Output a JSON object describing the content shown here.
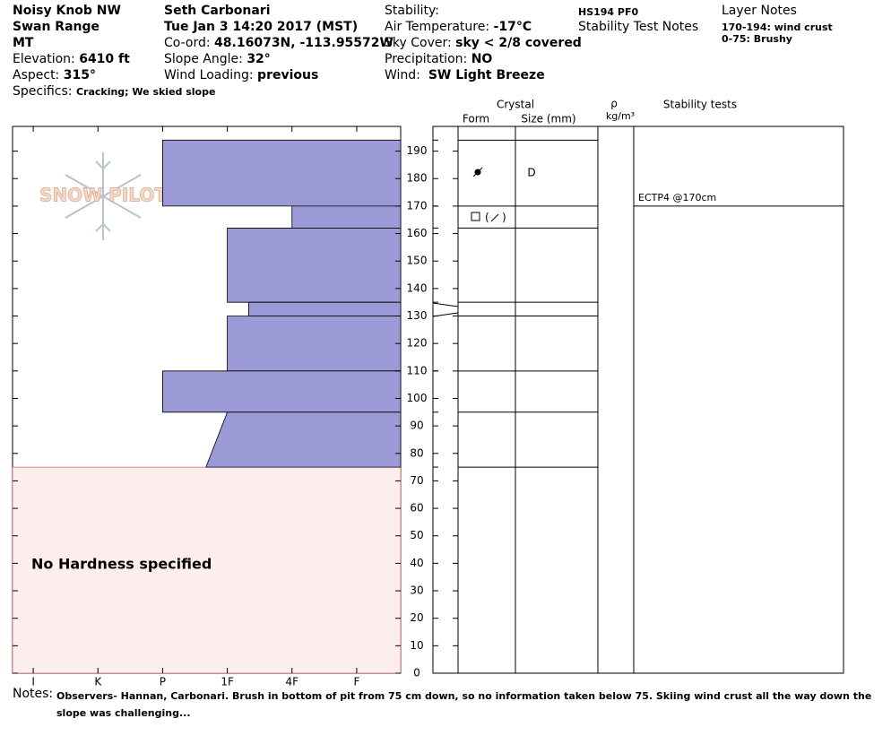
{
  "header": {
    "location": "Noisy Knob NW",
    "range": "Swan Range",
    "state": "MT",
    "elevation_label": "Elevation:",
    "elevation": "6410 ft",
    "aspect_label": "Aspect:",
    "aspect": "315°",
    "specifics_label": "Specifics:",
    "specifics": "Cracking; We skied slope",
    "observer": "Seth Carbonari",
    "datetime": "Tue Jan 3 14:20 2017 (MST)",
    "coord_label": "Co-ord:",
    "coord": "48.16073N, -113.95572W",
    "slope_label": "Slope Angle:",
    "slope": "32°",
    "wind_loading_label": "Wind Loading:",
    "wind_loading": "previous",
    "stability_label": "Stability:",
    "air_temp_label": "Air Temperature:",
    "air_temp": "-17°C",
    "sky_label": "Sky Cover:",
    "sky": "sky < 2/8 covered",
    "precip_label": "Precipitation:",
    "precip": "NO",
    "wind_label": "Wind:",
    "wind": "SW Light Breeze",
    "hs": "HS194 PF0",
    "stability_notes": "Stability Test Notes",
    "layer_notes_title": "Layer Notes",
    "layer_notes": [
      "170-194: wind crust",
      "0-75: Brushy"
    ]
  },
  "chart_data": {
    "type": "snow-profile",
    "watermark": "SNOW PILOT",
    "ylim": [
      0,
      199
    ],
    "yticks": [
      0,
      10,
      20,
      30,
      40,
      50,
      60,
      70,
      80,
      90,
      100,
      110,
      120,
      130,
      140,
      150,
      160,
      170,
      180,
      190
    ],
    "xlim": [
      0.68,
      6.68
    ],
    "xticks": [
      {
        "value": 1,
        "label": "I"
      },
      {
        "value": 2,
        "label": "K"
      },
      {
        "value": 3,
        "label": "P"
      },
      {
        "value": 4,
        "label": "1F"
      },
      {
        "value": 5,
        "label": "4F"
      },
      {
        "value": 6,
        "label": "F"
      }
    ],
    "color": "#9b99d6",
    "layers": [
      {
        "top": 194,
        "bottom": 170,
        "hardness_top": 3,
        "hardness_bottom": 3
      },
      {
        "top": 170,
        "bottom": 162,
        "hardness_top": 5,
        "hardness_bottom": 5
      },
      {
        "top": 162,
        "bottom": 135,
        "hardness_top": 4,
        "hardness_bottom": 4
      },
      {
        "top": 135,
        "bottom": 130,
        "hardness_top": 4.33,
        "hardness_bottom": 4.33
      },
      {
        "top": 130,
        "bottom": 110,
        "hardness_top": 4,
        "hardness_bottom": 4
      },
      {
        "top": 110,
        "bottom": 95,
        "hardness_top": 3,
        "hardness_bottom": 3
      },
      {
        "top": 95,
        "bottom": 75,
        "hardness_top": 4,
        "hardness_bottom": 3.67
      }
    ],
    "no_hardness": {
      "top": 75,
      "label": "No Hardness specified",
      "color": "#fdeeee"
    }
  },
  "crystal": {
    "title": "Crystal",
    "form_header": "Form",
    "size_header": "Size (mm)",
    "density_symbol": "ρ",
    "density_unit": "kg/m³",
    "stability_header": "Stability tests",
    "boundaries": [
      194,
      170,
      162,
      135,
      130,
      110,
      95,
      75
    ],
    "sizes": [
      {
        "top": 194,
        "bottom": 170,
        "size": "D"
      }
    ]
  },
  "stability_tests": [
    {
      "label": "ECTP4 @170cm",
      "height": 170
    }
  ],
  "notes": {
    "label": "Notes:",
    "text": "Observers- Hannan, Carbonari.  Brush in bottom of pit from 75 cm down, so no information taken below 75.  Skiing wind crust all the way down the slope was challenging..."
  }
}
